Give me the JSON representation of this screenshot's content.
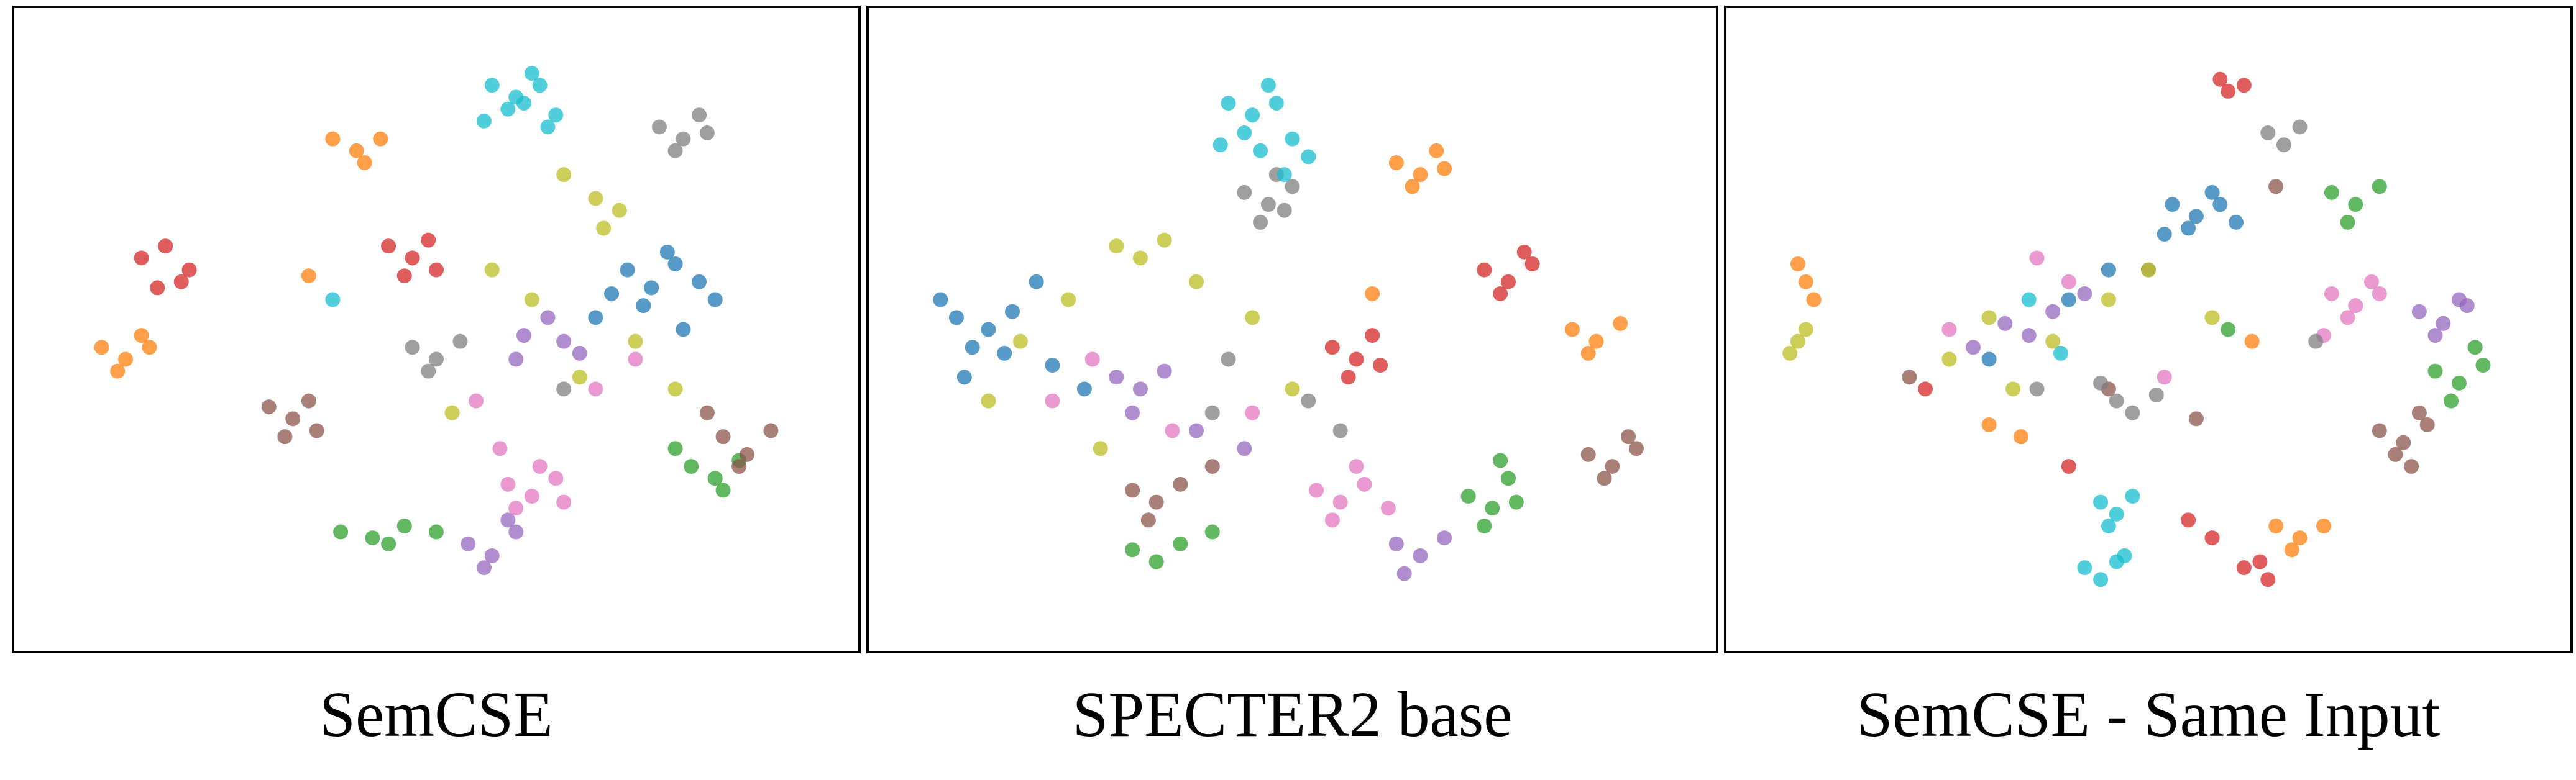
{
  "chart_data": [
    {
      "type": "scatter",
      "title": "SemCSE",
      "xlim": [
        0,
        100
      ],
      "ylim": [
        0,
        100
      ],
      "series": [
        {
          "color": "#1f77b4",
          "x": [
            74,
            77,
            80,
            83,
            76,
            79,
            72,
            85,
            70,
            81
          ],
          "y": [
            60,
            57,
            61,
            58,
            54,
            63,
            56,
            55,
            52,
            50
          ]
        },
        {
          "color": "#ff7f0e",
          "x": [
            37,
            40,
            43,
            41,
            8,
            11,
            14,
            10,
            13,
            34
          ],
          "y": [
            82,
            80,
            82,
            78,
            47,
            45,
            47,
            43,
            49,
            59
          ]
        },
        {
          "color": "#2ca02c",
          "x": [
            38,
            42,
            46,
            50,
            44,
            82,
            85,
            88,
            86,
            80
          ],
          "y": [
            16,
            15,
            17,
            16,
            14,
            27,
            25,
            28,
            23,
            30
          ]
        },
        {
          "color": "#d62728",
          "x": [
            13,
            16,
            19,
            15,
            18,
            44,
            47,
            50,
            46,
            49
          ],
          "y": [
            62,
            64,
            60,
            57,
            58,
            64,
            62,
            60,
            59,
            65
          ]
        },
        {
          "color": "#9467bd",
          "x": [
            54,
            57,
            60,
            56,
            59,
            61,
            64,
            66,
            60,
            68
          ],
          "y": [
            14,
            12,
            16,
            10,
            18,
            49,
            52,
            48,
            45,
            46
          ]
        },
        {
          "color": "#8c564b",
          "x": [
            29,
            32,
            35,
            31,
            34,
            86,
            89,
            92,
            84,
            88
          ],
          "y": [
            37,
            35,
            33,
            32,
            38,
            32,
            29,
            33,
            36,
            27
          ]
        },
        {
          "color": "#e377c2",
          "x": [
            59,
            62,
            65,
            60,
            63,
            66,
            58,
            70,
            75,
            55
          ],
          "y": [
            24,
            22,
            25,
            20,
            27,
            21,
            30,
            40,
            45,
            38
          ]
        },
        {
          "color": "#7f7f7f",
          "x": [
            78,
            81,
            84,
            80,
            83,
            47,
            50,
            53,
            49,
            66
          ],
          "y": [
            84,
            82,
            83,
            80,
            86,
            47,
            45,
            48,
            43,
            40
          ]
        },
        {
          "color": "#bcbd22",
          "x": [
            70,
            73,
            71,
            66,
            62,
            68,
            75,
            57,
            52,
            80
          ],
          "y": [
            72,
            70,
            67,
            76,
            55,
            42,
            48,
            60,
            36,
            40
          ]
        },
        {
          "color": "#17becf",
          "x": [
            57,
            60,
            63,
            59,
            62,
            61,
            65,
            37,
            56,
            64
          ],
          "y": [
            91,
            89,
            91,
            87,
            93,
            88,
            86,
            55,
            85,
            84
          ]
        }
      ]
    },
    {
      "type": "scatter",
      "title": "SPECTER2 base",
      "xlim": [
        0,
        100
      ],
      "ylim": [
        0,
        100
      ],
      "series": [
        {
          "color": "#1f77b4",
          "x": [
            8,
            12,
            15,
            10,
            14,
            6,
            18,
            20,
            9,
            24
          ],
          "y": [
            52,
            50,
            53,
            47,
            46,
            55,
            58,
            44,
            42,
            40
          ]
        },
        {
          "color": "#ff7f0e",
          "x": [
            63,
            66,
            69,
            65,
            68,
            85,
            88,
            91,
            87,
            60
          ],
          "y": [
            78,
            76,
            77,
            74,
            80,
            50,
            48,
            51,
            46,
            56
          ]
        },
        {
          "color": "#2ca02c",
          "x": [
            72,
            75,
            78,
            74,
            77,
            30,
            33,
            36,
            40,
            76
          ],
          "y": [
            22,
            20,
            21,
            17,
            25,
            13,
            11,
            14,
            16,
            28
          ]
        },
        {
          "color": "#d62728",
          "x": [
            74,
            77,
            80,
            76,
            79,
            55,
            58,
            61,
            57,
            60
          ],
          "y": [
            60,
            58,
            61,
            56,
            63,
            47,
            45,
            44,
            42,
            49
          ]
        },
        {
          "color": "#9467bd",
          "x": [
            63,
            66,
            69,
            64,
            28,
            31,
            34,
            30,
            38,
            44
          ],
          "y": [
            14,
            12,
            15,
            9,
            42,
            40,
            43,
            36,
            33,
            30
          ]
        },
        {
          "color": "#8c564b",
          "x": [
            87,
            90,
            93,
            89,
            92,
            30,
            33,
            36,
            32,
            40
          ],
          "y": [
            29,
            27,
            30,
            25,
            32,
            23,
            21,
            24,
            18,
            27
          ]
        },
        {
          "color": "#e377c2",
          "x": [
            53,
            56,
            59,
            55,
            58,
            62,
            20,
            25,
            35,
            45
          ],
          "y": [
            23,
            21,
            24,
            18,
            27,
            20,
            38,
            45,
            33,
            36
          ]
        },
        {
          "color": "#7f7f7f",
          "x": [
            44,
            47,
            50,
            46,
            49,
            48,
            40,
            52,
            42,
            56
          ],
          "y": [
            73,
            71,
            74,
            68,
            70,
            76,
            36,
            38,
            45,
            33
          ]
        },
        {
          "color": "#bcbd22",
          "x": [
            28,
            31,
            34,
            22,
            38,
            16,
            45,
            12,
            50,
            26
          ],
          "y": [
            64,
            62,
            65,
            55,
            58,
            48,
            52,
            38,
            40,
            30
          ]
        },
        {
          "color": "#17becf",
          "x": [
            42,
            45,
            48,
            44,
            47,
            46,
            50,
            41,
            49,
            52
          ],
          "y": [
            88,
            86,
            88,
            83,
            91,
            80,
            82,
            81,
            76,
            79
          ]
        }
      ]
    },
    {
      "type": "scatter",
      "title": "SemCSE - Same Input",
      "xlim": [
        0,
        100
      ],
      "ylim": [
        0,
        100
      ],
      "series": [
        {
          "color": "#1f77b4",
          "x": [
            53,
            56,
            59,
            55,
            58,
            52,
            61,
            30,
            40,
            45
          ],
          "y": [
            71,
            69,
            71,
            67,
            73,
            66,
            68,
            45,
            55,
            60
          ]
        },
        {
          "color": "#ff7f0e",
          "x": [
            66,
            69,
            72,
            68,
            6,
            7,
            8,
            63,
            30,
            34
          ],
          "y": [
            17,
            15,
            17,
            13,
            61,
            58,
            55,
            48,
            34,
            32
          ]
        },
        {
          "color": "#2ca02c",
          "x": [
            73,
            76,
            79,
            75,
            86,
            89,
            92,
            88,
            91,
            60
          ],
          "y": [
            73,
            71,
            74,
            68,
            43,
            41,
            44,
            38,
            47,
            50
          ]
        },
        {
          "color": "#d62728",
          "x": [
            59,
            60,
            62,
            62,
            65,
            64,
            55,
            58,
            22,
            40
          ],
          "y": [
            92,
            90,
            91,
            10,
            8,
            11,
            18,
            15,
            40,
            27
          ]
        },
        {
          "color": "#9467bd",
          "x": [
            84,
            87,
            90,
            86,
            89,
            32,
            35,
            38,
            28,
            42
          ],
          "y": [
            53,
            51,
            54,
            49,
            55,
            51,
            49,
            53,
            47,
            56
          ]
        },
        {
          "color": "#8c564b",
          "x": [
            79,
            82,
            85,
            81,
            84,
            83,
            45,
            20,
            56,
            66
          ],
          "y": [
            33,
            31,
            34,
            29,
            36,
            27,
            40,
            42,
            35,
            74
          ]
        },
        {
          "color": "#e377c2",
          "x": [
            73,
            76,
            79,
            75,
            78,
            72,
            40,
            25,
            52,
            36
          ],
          "y": [
            56,
            54,
            56,
            52,
            58,
            49,
            58,
            50,
            42,
            62
          ]
        },
        {
          "color": "#7f7f7f",
          "x": [
            65,
            67,
            69,
            46,
            48,
            51,
            44,
            71,
            50,
            36
          ],
          "y": [
            83,
            81,
            84,
            38,
            36,
            39,
            41,
            48,
            60,
            40
          ]
        },
        {
          "color": "#bcbd22",
          "x": [
            6,
            7,
            5,
            25,
            30,
            38,
            45,
            50,
            33,
            58
          ],
          "y": [
            48,
            50,
            46,
            45,
            52,
            48,
            55,
            60,
            40,
            52
          ]
        },
        {
          "color": "#17becf",
          "x": [
            44,
            46,
            48,
            45,
            42,
            44,
            46,
            47,
            35,
            39
          ],
          "y": [
            21,
            19,
            22,
            17,
            10,
            8,
            11,
            12,
            55,
            46
          ]
        }
      ]
    }
  ]
}
